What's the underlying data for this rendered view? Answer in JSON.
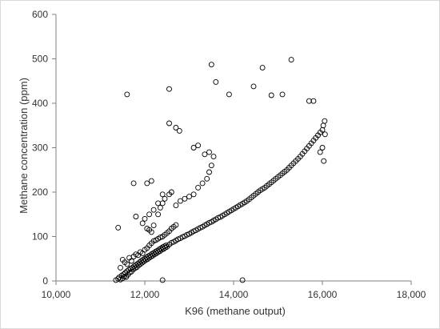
{
  "chart_data": {
    "type": "scatter",
    "title": "",
    "xlabel": "K96 (methane output)",
    "ylabel": "Methane concentration (ppm)",
    "xlim": [
      10000,
      18000
    ],
    "ylim": [
      0,
      600
    ],
    "x_ticks": [
      10000,
      12000,
      14000,
      16000,
      18000
    ],
    "x_tick_labels": [
      "10,000",
      "12,000",
      "14,000",
      "16,000",
      "18,000"
    ],
    "y_ticks": [
      0,
      100,
      200,
      300,
      400,
      500,
      600
    ],
    "y_tick_labels": [
      "0",
      "100",
      "200",
      "300",
      "400",
      "500",
      "600"
    ],
    "grid": false,
    "legend": "none",
    "marker": "open-circle",
    "colors": {
      "marker": "#000000",
      "axis": "#808080",
      "text": "#333333"
    },
    "series": [
      {
        "points": [
          [
            11350,
            2
          ],
          [
            11400,
            5
          ],
          [
            11420,
            8
          ],
          [
            11450,
            3
          ],
          [
            11480,
            12
          ],
          [
            11500,
            6
          ],
          [
            11520,
            15
          ],
          [
            11540,
            10
          ],
          [
            11560,
            18
          ],
          [
            11580,
            9
          ],
          [
            11600,
            22
          ],
          [
            11620,
            14
          ],
          [
            11640,
            25
          ],
          [
            11660,
            19
          ],
          [
            11680,
            28
          ],
          [
            11700,
            21
          ],
          [
            11720,
            30
          ],
          [
            11740,
            26
          ],
          [
            11760,
            33
          ],
          [
            11780,
            29
          ],
          [
            11800,
            36
          ],
          [
            11820,
            31
          ],
          [
            11840,
            39
          ],
          [
            11860,
            35
          ],
          [
            11880,
            42
          ],
          [
            11900,
            38
          ],
          [
            11920,
            45
          ],
          [
            11940,
            41
          ],
          [
            11960,
            48
          ],
          [
            11980,
            44
          ],
          [
            12000,
            50
          ],
          [
            12020,
            47
          ],
          [
            12040,
            53
          ],
          [
            12060,
            49
          ],
          [
            12080,
            56
          ],
          [
            12100,
            52
          ],
          [
            12120,
            58
          ],
          [
            12140,
            55
          ],
          [
            12160,
            61
          ],
          [
            12180,
            57
          ],
          [
            12200,
            63
          ],
          [
            12220,
            60
          ],
          [
            12240,
            66
          ],
          [
            12260,
            62
          ],
          [
            12280,
            68
          ],
          [
            12300,
            65
          ],
          [
            12320,
            71
          ],
          [
            12340,
            67
          ],
          [
            12360,
            73
          ],
          [
            12380,
            70
          ],
          [
            12400,
            76
          ],
          [
            12420,
            72
          ],
          [
            12440,
            78
          ],
          [
            12460,
            75
          ],
          [
            12480,
            80
          ],
          [
            12500,
            77
          ],
          [
            12550,
            82
          ],
          [
            12600,
            86
          ],
          [
            12650,
            88
          ],
          [
            12700,
            91
          ],
          [
            12750,
            94
          ],
          [
            12800,
            96
          ],
          [
            12850,
            99
          ],
          [
            12900,
            101
          ],
          [
            12950,
            104
          ],
          [
            13000,
            106
          ],
          [
            13050,
            109
          ],
          [
            13100,
            112
          ],
          [
            13150,
            114
          ],
          [
            13200,
            117
          ],
          [
            13250,
            120
          ],
          [
            13300,
            122
          ],
          [
            13350,
            125
          ],
          [
            13400,
            128
          ],
          [
            13450,
            131
          ],
          [
            13500,
            133
          ],
          [
            13550,
            136
          ],
          [
            13600,
            139
          ],
          [
            13650,
            142
          ],
          [
            13700,
            144
          ],
          [
            13750,
            147
          ],
          [
            13800,
            150
          ],
          [
            13850,
            153
          ],
          [
            13900,
            156
          ],
          [
            13950,
            159
          ],
          [
            14000,
            162
          ],
          [
            14050,
            165
          ],
          [
            14100,
            168
          ],
          [
            14150,
            171
          ],
          [
            14200,
            174
          ],
          [
            14250,
            177
          ],
          [
            14300,
            180
          ],
          [
            14350,
            184
          ],
          [
            14400,
            188
          ],
          [
            14450,
            192
          ],
          [
            14500,
            196
          ],
          [
            14550,
            200
          ],
          [
            14600,
            204
          ],
          [
            14650,
            207
          ],
          [
            14700,
            210
          ],
          [
            14750,
            214
          ],
          [
            14800,
            218
          ],
          [
            14850,
            222
          ],
          [
            14900,
            226
          ],
          [
            14950,
            230
          ],
          [
            15000,
            234
          ],
          [
            15050,
            238
          ],
          [
            15100,
            242
          ],
          [
            15150,
            246
          ],
          [
            15200,
            250
          ],
          [
            15250,
            255
          ],
          [
            15300,
            260
          ],
          [
            15350,
            265
          ],
          [
            15400,
            270
          ],
          [
            15450,
            275
          ],
          [
            15500,
            280
          ],
          [
            15550,
            286
          ],
          [
            15600,
            292
          ],
          [
            15650,
            298
          ],
          [
            15700,
            304
          ],
          [
            15750,
            310
          ],
          [
            15800,
            316
          ],
          [
            15850,
            322
          ],
          [
            15900,
            328
          ],
          [
            15950,
            334
          ],
          [
            16000,
            340
          ],
          [
            16020,
            350
          ],
          [
            16050,
            360
          ],
          [
            16060,
            330
          ],
          [
            16000,
            300
          ],
          [
            15950,
            290
          ],
          [
            16030,
            270
          ],
          [
            11450,
            30
          ],
          [
            11500,
            48
          ],
          [
            11550,
            42
          ],
          [
            11600,
            38
          ],
          [
            11650,
            52
          ],
          [
            11700,
            45
          ],
          [
            11750,
            55
          ],
          [
            11800,
            60
          ],
          [
            11850,
            58
          ],
          [
            11900,
            65
          ],
          [
            11950,
            62
          ],
          [
            12000,
            70
          ],
          [
            12050,
            74
          ],
          [
            12100,
            80
          ],
          [
            12150,
            85
          ],
          [
            12200,
            90
          ],
          [
            12250,
            92
          ],
          [
            12300,
            95
          ],
          [
            12350,
            98
          ],
          [
            12400,
            100
          ],
          [
            12450,
            104
          ],
          [
            12500,
            108
          ],
          [
            12550,
            112
          ],
          [
            12600,
            118
          ],
          [
            12650,
            122
          ],
          [
            12700,
            126
          ],
          [
            11400,
            120
          ],
          [
            11600,
            420
          ],
          [
            11750,
            220
          ],
          [
            11800,
            145
          ],
          [
            12050,
            220
          ],
          [
            12150,
            225
          ],
          [
            12200,
            125
          ],
          [
            12300,
            150
          ],
          [
            12350,
            165
          ],
          [
            12400,
            175
          ],
          [
            12450,
            185
          ],
          [
            12550,
            195
          ],
          [
            12600,
            200
          ],
          [
            12700,
            170
          ],
          [
            12800,
            180
          ],
          [
            12900,
            185
          ],
          [
            13000,
            190
          ],
          [
            13100,
            195
          ],
          [
            13200,
            210
          ],
          [
            13300,
            220
          ],
          [
            13400,
            230
          ],
          [
            13450,
            245
          ],
          [
            13500,
            260
          ],
          [
            13550,
            280
          ],
          [
            13100,
            300
          ],
          [
            13200,
            305
          ],
          [
            13350,
            285
          ],
          [
            13450,
            290
          ],
          [
            12550,
            355
          ],
          [
            12700,
            345
          ],
          [
            12780,
            338
          ],
          [
            12550,
            432
          ],
          [
            13500,
            487
          ],
          [
            13600,
            448
          ],
          [
            13900,
            420
          ],
          [
            14450,
            438
          ],
          [
            14650,
            480
          ],
          [
            14850,
            418
          ],
          [
            15100,
            420
          ],
          [
            15300,
            498
          ],
          [
            15700,
            405
          ],
          [
            15800,
            405
          ],
          [
            12400,
            2
          ],
          [
            14200,
            2
          ],
          [
            12100,
            115
          ],
          [
            12150,
            110
          ],
          [
            12050,
            118
          ],
          [
            11950,
            130
          ],
          [
            12000,
            140
          ],
          [
            12100,
            150
          ],
          [
            12200,
            160
          ],
          [
            12300,
            175
          ],
          [
            12400,
            195
          ]
        ]
      }
    ]
  }
}
